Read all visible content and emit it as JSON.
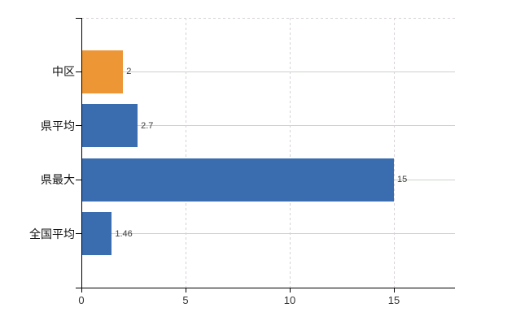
{
  "chart_data": {
    "type": "bar",
    "orientation": "horizontal",
    "title": "",
    "xlabel": "",
    "ylabel": "",
    "categories": [
      "中区",
      "県平均",
      "県最大",
      "全国平均"
    ],
    "values": [
      2,
      2.7,
      15,
      1.46
    ],
    "data_labels": [
      "2",
      "2.7",
      "15",
      "1.46"
    ],
    "bar_colors": [
      "#ED9636",
      "#3A6CB0",
      "#3A6CB0",
      "#3A6CB0"
    ],
    "x_ticks": [
      0,
      5,
      10,
      15
    ],
    "x_tick_labels": [
      "0",
      "5",
      "10",
      "15"
    ],
    "xlim": [
      0,
      17.93
    ],
    "grid": true,
    "legend": false,
    "colors": {
      "accent_orange": "#ED9636",
      "accent_blue": "#3A6CB0",
      "h_gridline": "#CCD3C7",
      "v_gridline": "#D7D1D7",
      "top_border": "#D7D1D7",
      "axis": "#000000",
      "background": "#FFFFFF"
    }
  }
}
